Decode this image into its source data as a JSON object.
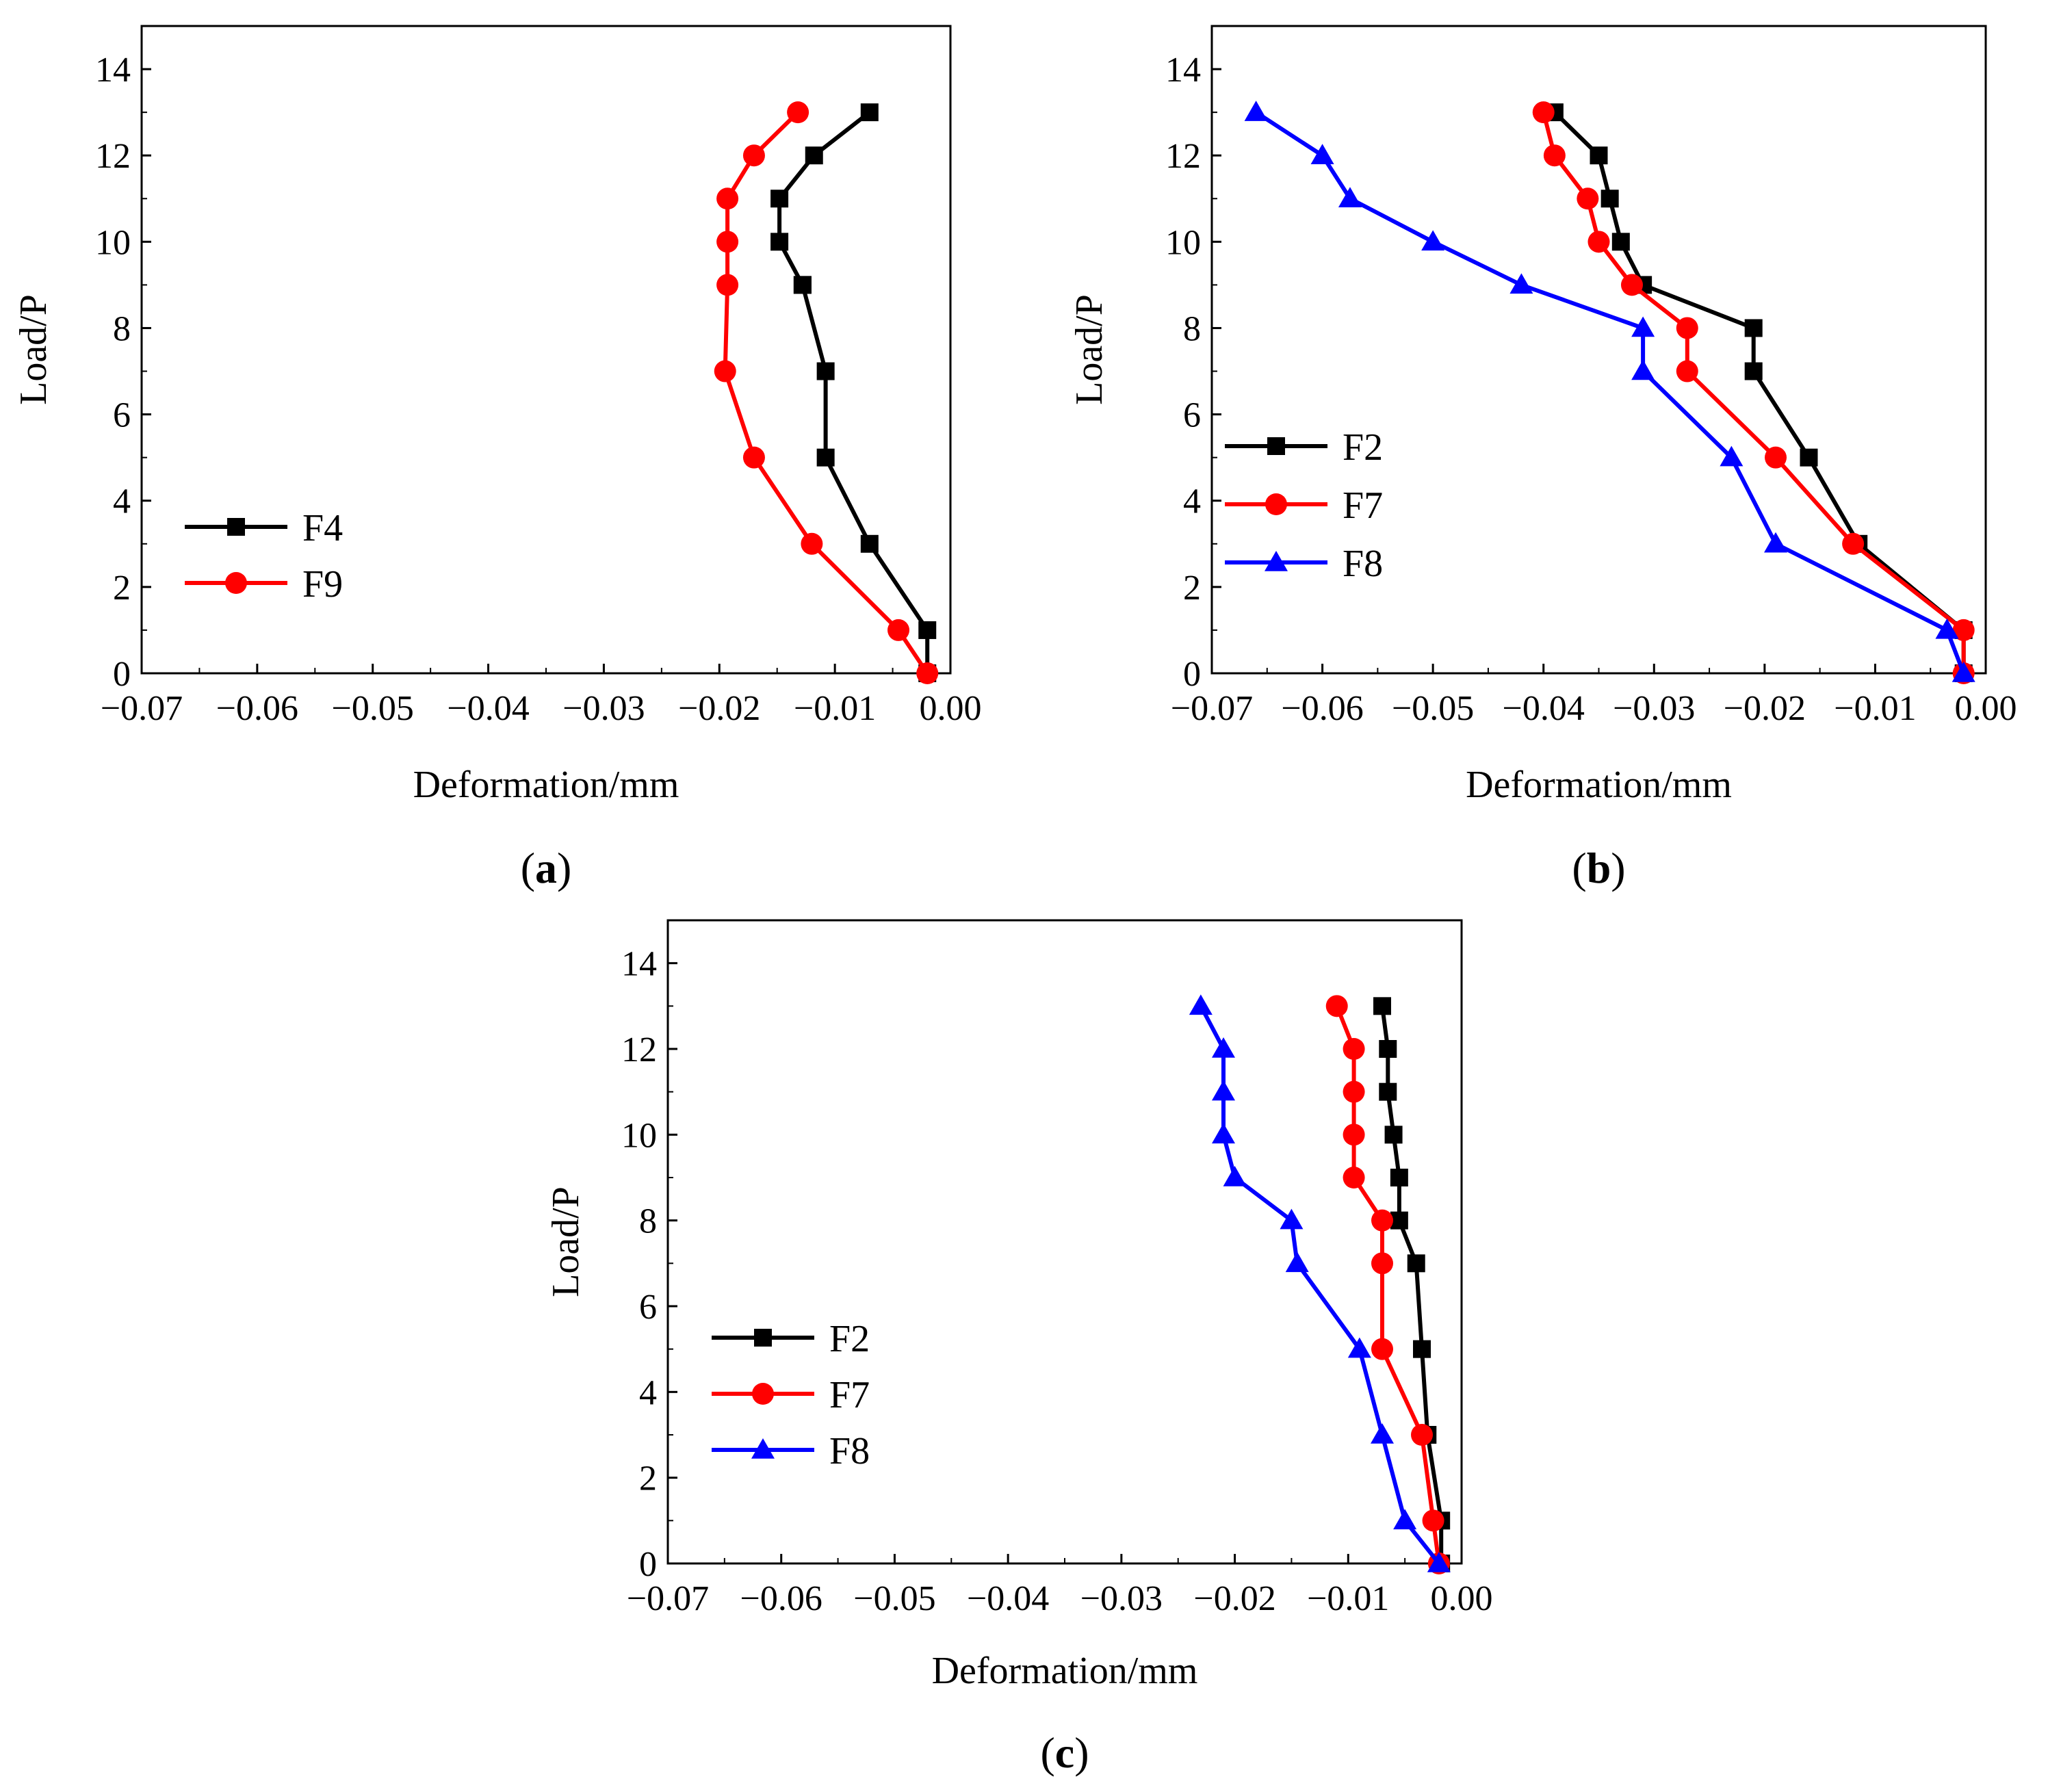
{
  "chart_data": [
    {
      "type": "line",
      "panel_label": "a",
      "xlabel": "Deformation/mm",
      "ylabel": "Load/P",
      "xlim": [
        -0.07,
        0.0
      ],
      "ylim": [
        0,
        15
      ],
      "x_ticks": [
        -0.07,
        -0.06,
        -0.05,
        -0.04,
        -0.03,
        -0.02,
        -0.01,
        0.0
      ],
      "x_tick_labels": [
        "−0.07",
        "−0.06",
        "−0.05",
        "−0.04",
        "−0.03",
        "−0.02",
        "−0.01",
        "0.00"
      ],
      "y_ticks": [
        0,
        2,
        4,
        6,
        8,
        10,
        12,
        14
      ],
      "y_tick_labels": [
        "0",
        "2",
        "4",
        "6",
        "8",
        "10",
        "12",
        "14"
      ],
      "legend_position": "lower-left",
      "series": [
        {
          "name": "F4",
          "color": "#000000",
          "marker": "square",
          "points": [
            [
              -0.002,
              0
            ],
            [
              -0.002,
              1
            ],
            [
              -0.007,
              3
            ],
            [
              -0.0108,
              5
            ],
            [
              -0.0108,
              7
            ],
            [
              -0.0128,
              9
            ],
            [
              -0.0128,
              9
            ],
            [
              -0.0148,
              10
            ],
            [
              -0.0148,
              11
            ],
            [
              -0.0118,
              12
            ],
            [
              -0.007,
              13
            ]
          ]
        },
        {
          "name": "F9",
          "color": "#ff0000",
          "marker": "circle",
          "points": [
            [
              -0.002,
              0
            ],
            [
              -0.0045,
              1
            ],
            [
              -0.012,
              3
            ],
            [
              -0.017,
              5
            ],
            [
              -0.0195,
              7
            ],
            [
              -0.0193,
              9
            ],
            [
              -0.0193,
              10
            ],
            [
              -0.0193,
              11
            ],
            [
              -0.017,
              12
            ],
            [
              -0.0132,
              13
            ]
          ]
        }
      ]
    },
    {
      "type": "line",
      "panel_label": "b",
      "xlabel": "Deformation/mm",
      "ylabel": "Load/P",
      "xlim": [
        -0.07,
        0.0
      ],
      "ylim": [
        0,
        15
      ],
      "x_ticks": [
        -0.07,
        -0.06,
        -0.05,
        -0.04,
        -0.03,
        -0.02,
        -0.01,
        0.0
      ],
      "x_tick_labels": [
        "−0.07",
        "−0.06",
        "−0.05",
        "−0.04",
        "−0.03",
        "−0.02",
        "−0.01",
        "0.00"
      ],
      "y_ticks": [
        0,
        2,
        4,
        6,
        8,
        10,
        12,
        14
      ],
      "y_tick_labels": [
        "0",
        "2",
        "4",
        "6",
        "8",
        "10",
        "12",
        "14"
      ],
      "legend_position": "middle-left",
      "series": [
        {
          "name": "F2",
          "color": "#000000",
          "marker": "square",
          "points": [
            [
              -0.002,
              0
            ],
            [
              -0.002,
              1
            ],
            [
              -0.0115,
              3
            ],
            [
              -0.016,
              5
            ],
            [
              -0.021,
              7
            ],
            [
              -0.021,
              8
            ],
            [
              -0.031,
              9
            ],
            [
              -0.033,
              10
            ],
            [
              -0.034,
              11
            ],
            [
              -0.035,
              12
            ],
            [
              -0.039,
              13
            ]
          ]
        },
        {
          "name": "F7",
          "color": "#ff0000",
          "marker": "circle",
          "points": [
            [
              -0.002,
              0
            ],
            [
              -0.002,
              1
            ],
            [
              -0.012,
              3
            ],
            [
              -0.019,
              5
            ],
            [
              -0.027,
              7
            ],
            [
              -0.027,
              8
            ],
            [
              -0.032,
              9
            ],
            [
              -0.035,
              10
            ],
            [
              -0.036,
              11
            ],
            [
              -0.039,
              12
            ],
            [
              -0.04,
              13
            ]
          ]
        },
        {
          "name": "F8",
          "color": "#0000ff",
          "marker": "triangle",
          "points": [
            [
              -0.002,
              0
            ],
            [
              -0.0035,
              1
            ],
            [
              -0.019,
              3
            ],
            [
              -0.023,
              5
            ],
            [
              -0.031,
              7
            ],
            [
              -0.031,
              8
            ],
            [
              -0.042,
              9
            ],
            [
              -0.05,
              10
            ],
            [
              -0.0575,
              11
            ],
            [
              -0.06,
              12
            ],
            [
              -0.066,
              13
            ]
          ]
        }
      ]
    },
    {
      "type": "line",
      "panel_label": "c",
      "xlabel": "Deformation/mm",
      "ylabel": "Load/P",
      "xlim": [
        -0.07,
        0.0
      ],
      "ylim": [
        0,
        15
      ],
      "x_ticks": [
        -0.07,
        -0.06,
        -0.05,
        -0.04,
        -0.03,
        -0.02,
        -0.01,
        0.0
      ],
      "x_tick_labels": [
        "−0.07",
        "−0.06",
        "−0.05",
        "−0.04",
        "−0.03",
        "−0.02",
        "−0.01",
        "0.00"
      ],
      "y_ticks": [
        0,
        2,
        4,
        6,
        8,
        10,
        12,
        14
      ],
      "y_tick_labels": [
        "0",
        "2",
        "4",
        "6",
        "8",
        "10",
        "12",
        "14"
      ],
      "legend_position": "middle-left",
      "series": [
        {
          "name": "F2",
          "color": "#000000",
          "marker": "square",
          "points": [
            [
              -0.0018,
              0
            ],
            [
              -0.0018,
              1
            ],
            [
              -0.003,
              3
            ],
            [
              -0.0035,
              5
            ],
            [
              -0.004,
              7
            ],
            [
              -0.0055,
              8
            ],
            [
              -0.0055,
              9
            ],
            [
              -0.006,
              10
            ],
            [
              -0.0065,
              11
            ],
            [
              -0.0065,
              12
            ],
            [
              -0.007,
              13
            ]
          ]
        },
        {
          "name": "F7",
          "color": "#ff0000",
          "marker": "circle",
          "points": [
            [
              -0.002,
              0
            ],
            [
              -0.0025,
              1
            ],
            [
              -0.0035,
              3
            ],
            [
              -0.007,
              5
            ],
            [
              -0.007,
              7
            ],
            [
              -0.007,
              8
            ],
            [
              -0.0095,
              9
            ],
            [
              -0.0095,
              10
            ],
            [
              -0.0095,
              11
            ],
            [
              -0.0095,
              12
            ],
            [
              -0.011,
              13
            ]
          ]
        },
        {
          "name": "F8",
          "color": "#0000ff",
          "marker": "triangle",
          "points": [
            [
              -0.002,
              0
            ],
            [
              -0.005,
              1
            ],
            [
              -0.007,
              3
            ],
            [
              -0.009,
              5
            ],
            [
              -0.0145,
              7
            ],
            [
              -0.015,
              8
            ],
            [
              -0.02,
              9
            ],
            [
              -0.021,
              10
            ],
            [
              -0.021,
              11
            ],
            [
              -0.021,
              12
            ],
            [
              -0.023,
              13
            ]
          ]
        }
      ]
    }
  ]
}
